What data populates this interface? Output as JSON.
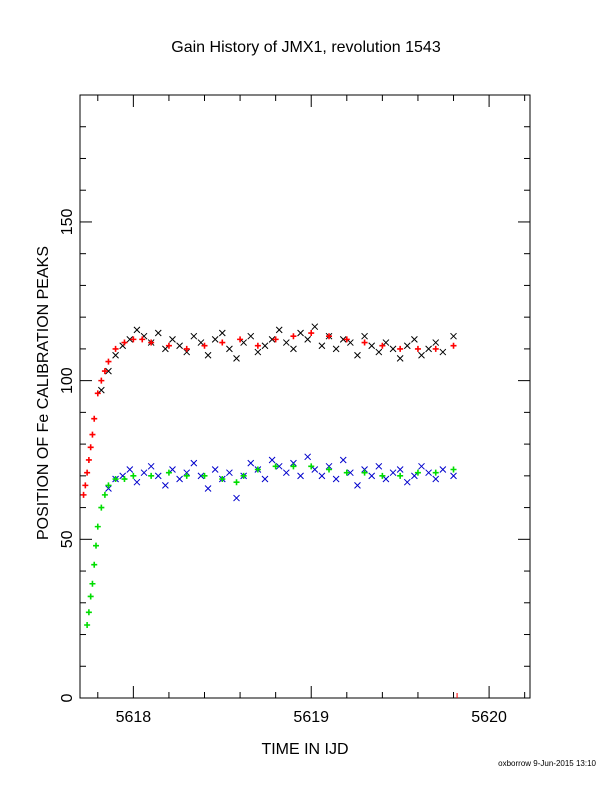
{
  "chart_data": {
    "type": "scatter",
    "title": "Gain History of JMX1, revolution 1543",
    "xlabel": "TIME IN IJD",
    "ylabel": "POSITION OF Fe CALIBRATION PEAKS",
    "footer": "oxborrow  9-Jun-2015 13:10",
    "xlim": [
      5617.7,
      5620.23
    ],
    "ylim": [
      0,
      190
    ],
    "x_ticks": [
      "5618",
      "5619",
      "5620"
    ],
    "y_ticks": [
      "0",
      "50",
      "100",
      "150"
    ],
    "grid": false,
    "colors": {
      "upper_raw": "#000000",
      "upper_fit": "#ff0000",
      "lower_raw": "#0000cc",
      "lower_fit": "#00dd00"
    },
    "series": [
      {
        "marker": "x",
        "color": "#000000",
        "x": [
          5617.82,
          5617.86,
          5617.9,
          5617.94,
          5617.98,
          5618.02,
          5618.06,
          5618.1,
          5618.14,
          5618.18,
          5618.22,
          5618.26,
          5618.3,
          5618.34,
          5618.38,
          5618.42,
          5618.46,
          5618.5,
          5618.54,
          5618.58,
          5618.62,
          5618.66,
          5618.7,
          5618.74,
          5618.78,
          5618.82,
          5618.86,
          5618.9,
          5618.94,
          5618.98,
          5619.02,
          5619.06,
          5619.1,
          5619.14,
          5619.18,
          5619.22,
          5619.26,
          5619.3,
          5619.34,
          5619.38,
          5619.42,
          5619.46,
          5619.5,
          5619.54,
          5619.58,
          5619.62,
          5619.66,
          5619.7,
          5619.74,
          5619.8
        ],
        "y": [
          97,
          103,
          108,
          111,
          113,
          116,
          114,
          112,
          115,
          110,
          113,
          111,
          109,
          114,
          112,
          108,
          113,
          115,
          110,
          107,
          112,
          114,
          109,
          111,
          113,
          116,
          112,
          110,
          115,
          113,
          117,
          111,
          114,
          110,
          113,
          112,
          108,
          114,
          111,
          109,
          112,
          110,
          107,
          111,
          113,
          108,
          110,
          112,
          109,
          114
        ]
      },
      {
        "marker": "+",
        "color": "#ff0000",
        "x": [
          5617.72,
          5617.73,
          5617.74,
          5617.75,
          5617.76,
          5617.77,
          5617.78,
          5617.8,
          5617.82,
          5617.84,
          5617.86,
          5617.9,
          5617.95,
          5618.0,
          5618.05,
          5618.1,
          5618.2,
          5618.3,
          5618.4,
          5618.5,
          5618.6,
          5618.7,
          5618.8,
          5618.9,
          5619.0,
          5619.1,
          5619.2,
          5619.3,
          5619.4,
          5619.5,
          5619.6,
          5619.7,
          5619.8
        ],
        "y": [
          64,
          67,
          71,
          75,
          79,
          83,
          88,
          96,
          100,
          103,
          106,
          110,
          112,
          113,
          113,
          112,
          111,
          110,
          111,
          112,
          113,
          111,
          113,
          114,
          115,
          114,
          113,
          112,
          111,
          110,
          110,
          110,
          111
        ]
      },
      {
        "marker": "x",
        "color": "#0000cc",
        "x": [
          5617.86,
          5617.9,
          5617.94,
          5617.98,
          5618.02,
          5618.06,
          5618.1,
          5618.14,
          5618.18,
          5618.22,
          5618.26,
          5618.3,
          5618.34,
          5618.38,
          5618.42,
          5618.46,
          5618.5,
          5618.54,
          5618.58,
          5618.62,
          5618.66,
          5618.7,
          5618.74,
          5618.78,
          5618.82,
          5618.86,
          5618.9,
          5618.94,
          5618.98,
          5619.02,
          5619.06,
          5619.1,
          5619.14,
          5619.18,
          5619.22,
          5619.26,
          5619.3,
          5619.34,
          5619.38,
          5619.42,
          5619.46,
          5619.5,
          5619.54,
          5619.58,
          5619.62,
          5619.66,
          5619.7,
          5619.74,
          5619.8
        ],
        "y": [
          66,
          69,
          70,
          72,
          68,
          71,
          73,
          70,
          67,
          72,
          69,
          71,
          74,
          70,
          66,
          72,
          69,
          71,
          63,
          70,
          74,
          72,
          69,
          75,
          73,
          71,
          74,
          70,
          76,
          72,
          70,
          73,
          69,
          75,
          71,
          67,
          72,
          70,
          73,
          69,
          71,
          72,
          68,
          70,
          73,
          71,
          69,
          72,
          70
        ]
      },
      {
        "marker": "+",
        "color": "#00dd00",
        "x": [
          5617.74,
          5617.75,
          5617.76,
          5617.77,
          5617.78,
          5617.79,
          5617.8,
          5617.82,
          5617.84,
          5617.86,
          5617.9,
          5617.95,
          5618.0,
          5618.1,
          5618.2,
          5618.3,
          5618.4,
          5618.5,
          5618.58,
          5618.62,
          5618.7,
          5618.8,
          5618.9,
          5619.0,
          5619.1,
          5619.2,
          5619.3,
          5619.4,
          5619.5,
          5619.6,
          5619.7,
          5619.8
        ],
        "y": [
          23,
          27,
          32,
          36,
          42,
          48,
          54,
          60,
          64,
          67,
          69,
          69,
          70,
          70,
          71,
          70,
          70,
          69,
          68,
          70,
          72,
          73,
          73,
          73,
          72,
          71,
          71,
          70,
          70,
          71,
          71,
          72
        ]
      }
    ]
  }
}
